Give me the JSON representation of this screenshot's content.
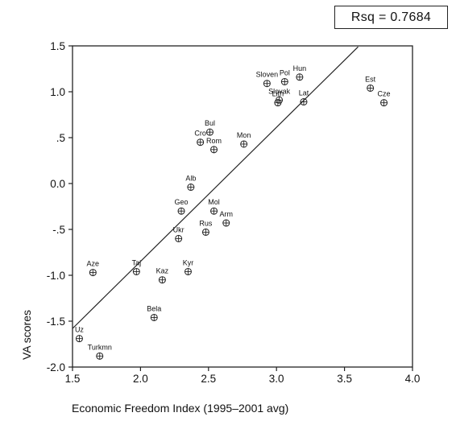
{
  "rsq_label": "Rsq = 0.7684",
  "chart_data": {
    "type": "scatter",
    "title": "",
    "xlabel": "Economic Freedom Index (1995–2001 avg)",
    "ylabel": "VA scores",
    "xlim": [
      1.5,
      4.0
    ],
    "ylim": [
      -2.0,
      1.5
    ],
    "xticks": [
      1.5,
      2.0,
      2.5,
      3.0,
      3.5,
      4.0
    ],
    "xtick_labels": [
      "1.5",
      "2.0",
      "2.5",
      "3.0",
      "3.5",
      "4.0"
    ],
    "yticks": [
      1.5,
      1.0,
      0.5,
      0.0,
      -0.5,
      -1.0,
      -1.5,
      -2.0
    ],
    "ytick_labels": [
      "1.5",
      "1.0",
      ".5",
      "0.0",
      "-.5",
      "-1.0",
      "-1.5",
      "-2.0"
    ],
    "grid": false,
    "r_squared": 0.7684,
    "points": [
      {
        "label": "Hun",
        "x": 3.17,
        "y": 1.16
      },
      {
        "label": "Slovak",
        "x": 3.02,
        "y": 0.91
      },
      {
        "label": "Pol",
        "x": 3.06,
        "y": 1.11
      },
      {
        "label": "Sloven",
        "x": 2.93,
        "y": 1.09
      },
      {
        "label": "Lith",
        "x": 3.01,
        "y": 0.88
      },
      {
        "label": "Lat",
        "x": 3.2,
        "y": 0.89
      },
      {
        "label": "Est",
        "x": 3.69,
        "y": 1.04
      },
      {
        "label": "Cze",
        "x": 3.79,
        "y": 0.88
      },
      {
        "label": "Bul",
        "x": 2.51,
        "y": 0.56
      },
      {
        "label": "Cro",
        "x": 2.44,
        "y": 0.45
      },
      {
        "label": "Rom",
        "x": 2.54,
        "y": 0.37
      },
      {
        "label": "Mon",
        "x": 2.76,
        "y": 0.43
      },
      {
        "label": "Alb",
        "x": 2.37,
        "y": -0.04
      },
      {
        "label": "Geo",
        "x": 2.3,
        "y": -0.3
      },
      {
        "label": "Mol",
        "x": 2.54,
        "y": -0.3
      },
      {
        "label": "Arm",
        "x": 2.63,
        "y": -0.43
      },
      {
        "label": "Rus",
        "x": 2.48,
        "y": -0.53
      },
      {
        "label": "Ukr",
        "x": 2.28,
        "y": -0.6
      },
      {
        "label": "Aze",
        "x": 1.65,
        "y": -0.97
      },
      {
        "label": "Taj",
        "x": 1.97,
        "y": -0.96
      },
      {
        "label": "Kaz",
        "x": 2.16,
        "y": -1.05
      },
      {
        "label": "Kyr",
        "x": 2.35,
        "y": -0.96
      },
      {
        "label": "Bela",
        "x": 2.1,
        "y": -1.46
      },
      {
        "label": "Uz",
        "x": 1.55,
        "y": -1.69
      },
      {
        "label": "Turkmn",
        "x": 1.7,
        "y": -1.88
      }
    ],
    "fit_line": {
      "x": [
        1.5,
        3.6
      ],
      "y": [
        -1.58,
        1.49
      ]
    }
  }
}
